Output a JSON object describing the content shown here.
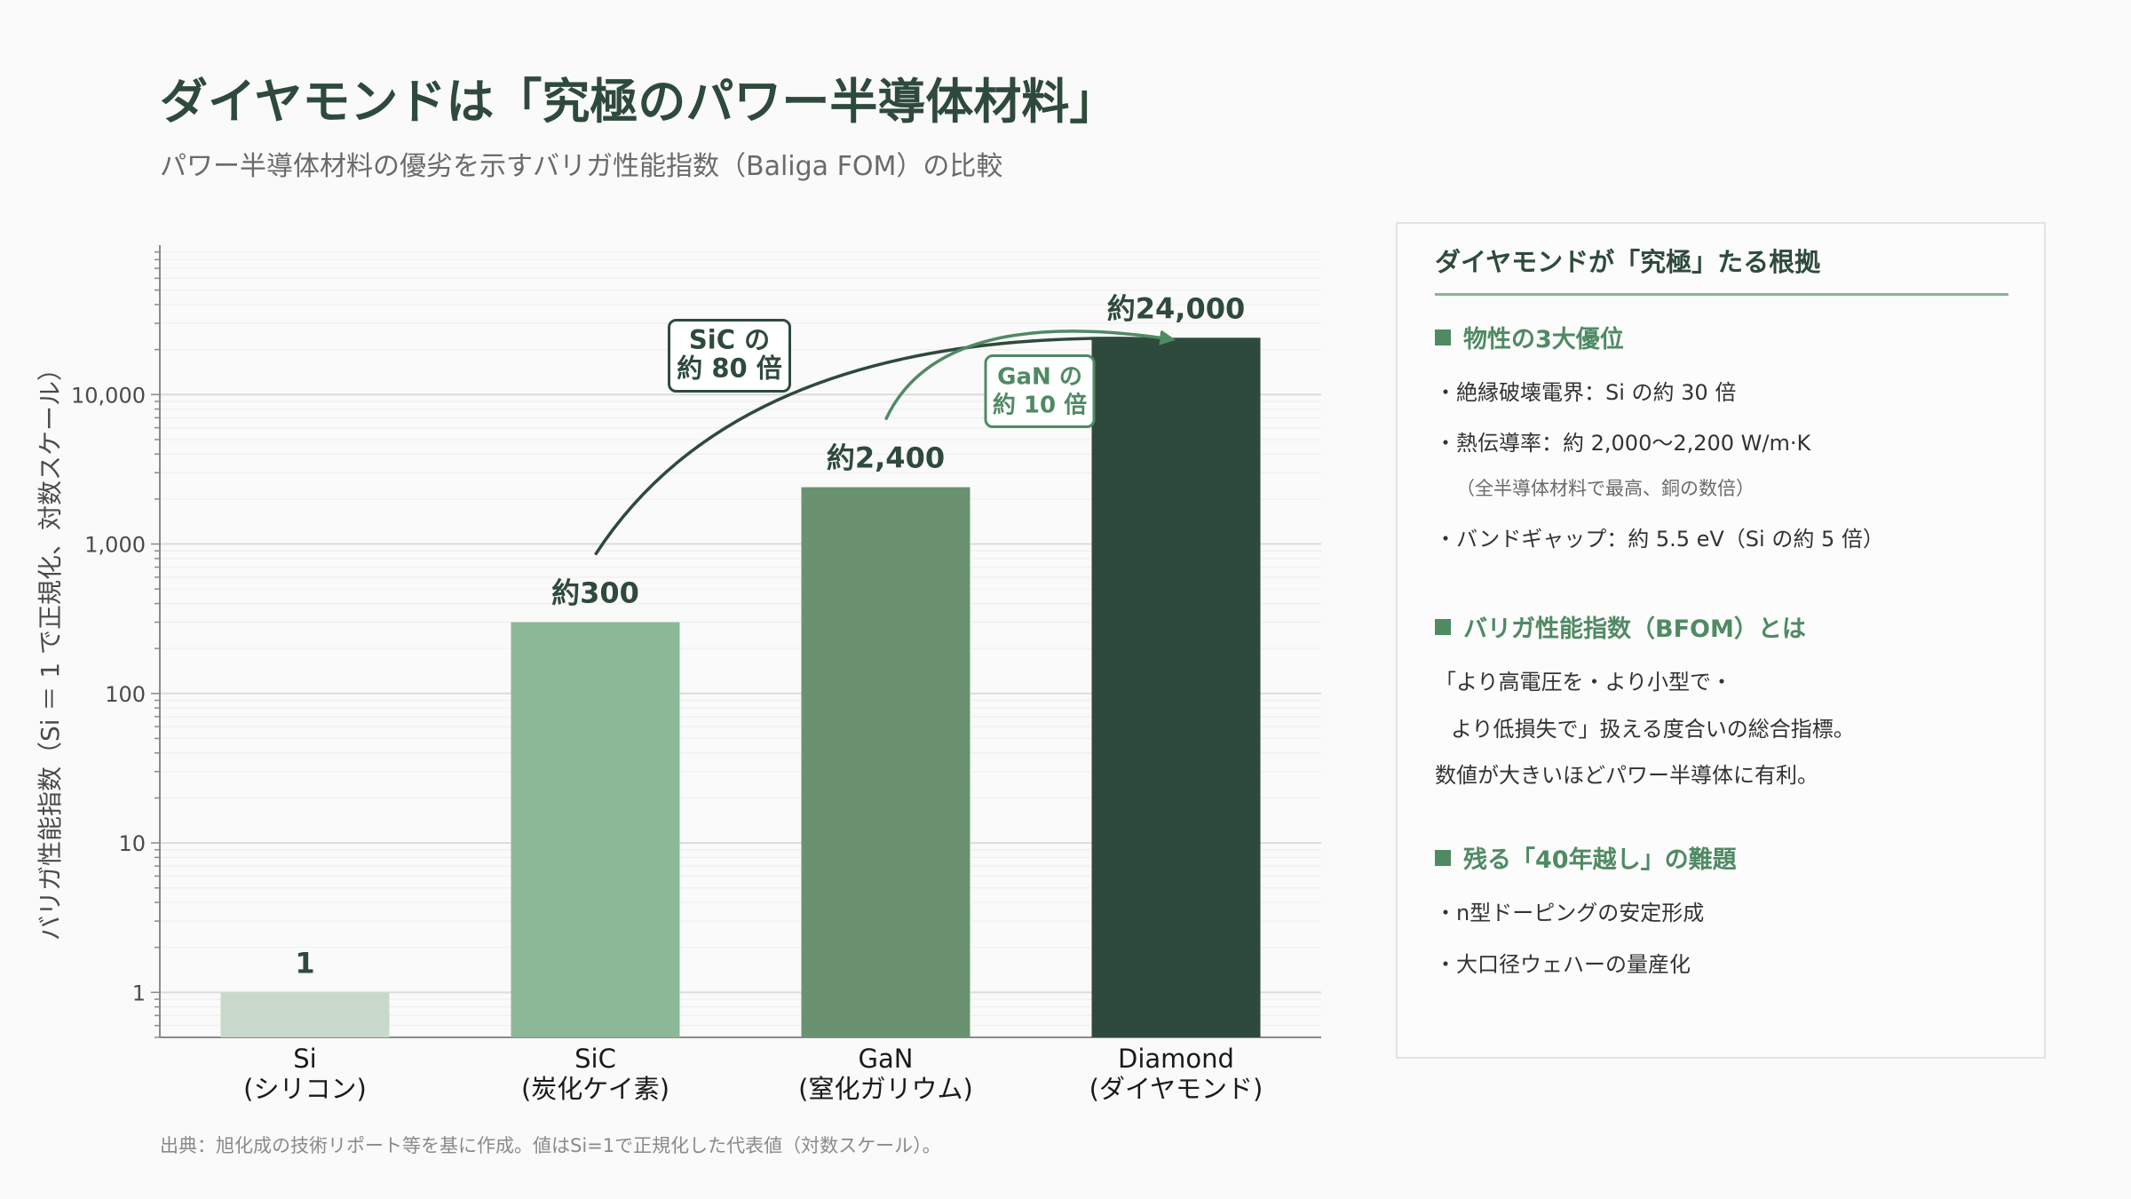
{
  "header": {
    "title": "ダイヤモンドは「究極のパワー半導体材料」",
    "subtitle": "パワー半導体材料の優劣を示すバリガ性能指数（Baliga FOM）の比較"
  },
  "chart_data": {
    "type": "bar",
    "y_scale": "log",
    "ylabel": "バリガ性能指数（Si ＝ 1 で正規化、対数スケール）",
    "ylim": [
      0.5,
      100000
    ],
    "grid": true,
    "y_ticks": [
      {
        "value": 1,
        "label": "1"
      },
      {
        "value": 10,
        "label": "10"
      },
      {
        "value": 100,
        "label": "100"
      },
      {
        "value": 1000,
        "label": "1,000"
      },
      {
        "value": 10000,
        "label": "10,000"
      }
    ],
    "categories": [
      {
        "name": "Si",
        "sub": "(シリコン)"
      },
      {
        "name": "SiC",
        "sub": "(炭化ケイ素)"
      },
      {
        "name": "GaN",
        "sub": "(窒化ガリウム)"
      },
      {
        "name": "Diamond",
        "sub": "(ダイヤモンド)"
      }
    ],
    "values": [
      1,
      300,
      2400,
      24000
    ],
    "data_labels": [
      "1",
      "約300",
      "約2,400",
      "約24,000"
    ],
    "colors": [
      "#c8d9cb",
      "#8cb898",
      "#6a9270",
      "#2e4a3c"
    ],
    "annotations": [
      {
        "from": 1,
        "to": 3,
        "lines": [
          "SiC の",
          "約 80 倍"
        ],
        "color": "#2e4a3c"
      },
      {
        "from": 2,
        "to": 3,
        "lines": [
          "GaN の",
          "約 10 倍"
        ],
        "color": "#4f8a63"
      }
    ]
  },
  "source": "出典：旭化成の技術リポート等を基に作成。値はSi=1で正規化した代表値（対数スケール）。",
  "panel": {
    "title": "ダイヤモンドが「究極」たる根拠",
    "sections": [
      {
        "heading": "物性の3大優位",
        "lines": [
          "・絶縁破壊電界：Si の約 30 倍",
          "・熱伝導率：約 2,000〜2,200 W/m·K",
          "（全半導体材料で最高、銅の数倍）",
          "・バンドギャップ：約 5.5 eV（Si の約 5 倍）"
        ]
      },
      {
        "heading": "バリガ性能指数（BFOM）とは",
        "lines": [
          "「より高電圧を・より小型で・",
          "より低損失で」扱える度合いの総合指標。",
          "数値が大きいほどパワー半導体に有利。"
        ]
      },
      {
        "heading": "残る「40年越し」の難題",
        "lines": [
          "・n型ドーピングの安定形成",
          "・大口径ウェハーの量産化"
        ]
      }
    ]
  }
}
